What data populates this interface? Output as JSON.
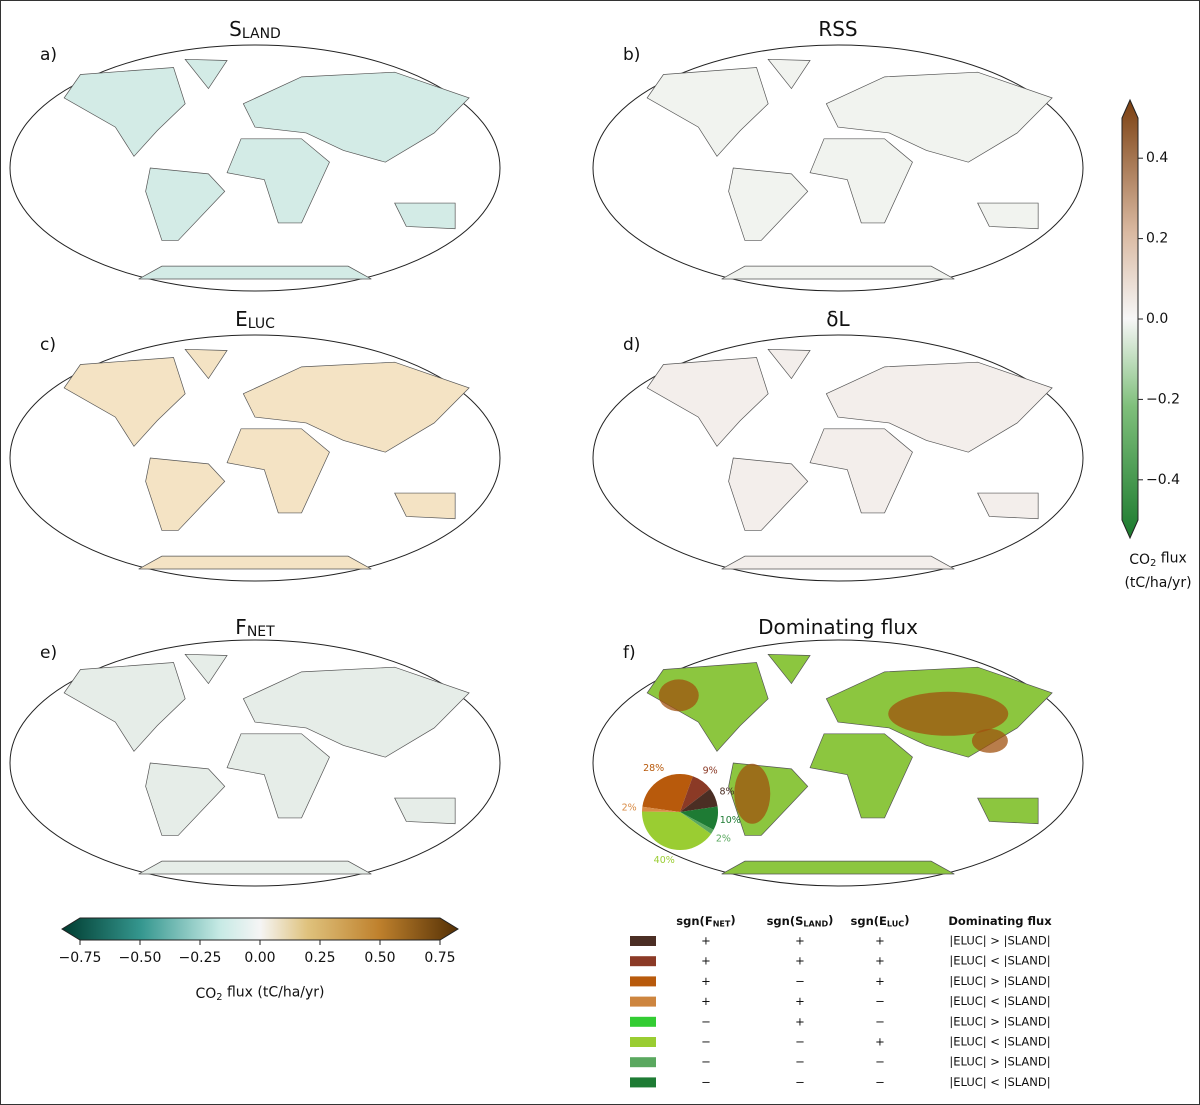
{
  "panels": [
    {
      "label": "a)",
      "title": {
        "main": "S",
        "sub": "LAND"
      }
    },
    {
      "label": "b)",
      "title": {
        "main": "RSS"
      }
    },
    {
      "label": "c)",
      "title": {
        "main": "E",
        "sub": "LUC"
      }
    },
    {
      "label": "d)",
      "title": {
        "main": "δL"
      }
    },
    {
      "label": "e)",
      "title": {
        "main": "F",
        "sub": "NET"
      }
    },
    {
      "label": "f)",
      "title": {
        "main": "Dominating flux"
      }
    }
  ],
  "chart_data": [
    {
      "type": "colorbar",
      "orientation": "horizontal",
      "xlim": [
        -0.75,
        0.75
      ],
      "xticks": [
        {
          "value": -0.75,
          "label": "−0.75"
        },
        {
          "value": -0.5,
          "label": "−0.50"
        },
        {
          "value": -0.25,
          "label": "−0.25"
        },
        {
          "value": 0,
          "label": "0.00"
        },
        0.25,
        {
          "value": 0.5,
          "label": "0.50"
        },
        0.75
      ],
      "label": {
        "main": "CO",
        "sub": "2",
        "rest": " flux (tC/ha/yr)"
      }
    },
    {
      "type": "colorbar",
      "orientation": "vertical",
      "ylim": [
        -0.5,
        0.5
      ],
      "yticks": [
        {
          "value": -0.4,
          "label": "−0.4"
        },
        {
          "value": -0.2,
          "label": "−0.2"
        },
        {
          "value": 0,
          "label": "0.0"
        },
        0.2,
        0.4
      ],
      "label": {
        "main": "CO",
        "sub": "2",
        "rest": " flux",
        "line2": "(tC/ha/yr)"
      }
    },
    {
      "type": "pie",
      "values": [
        28,
        9,
        8,
        10,
        2,
        40,
        2
      ],
      "value_labels": [
        "28%",
        "9%",
        "8%",
        "10%",
        "2%",
        "40%",
        "2%"
      ],
      "colors": [
        "#b85a0c",
        "#8b3a26",
        "#4b2e24",
        "#1e7b34",
        "#5aa85f",
        "#9acd32",
        "#d98b45"
      ]
    }
  ],
  "legend_table": {
    "headers": [
      {
        "main": "sgn(F",
        "sub": "NET",
        "end": ")"
      },
      {
        "main": "sgn(S",
        "sub": "LAND",
        "end": ")"
      },
      {
        "main": "sgn(E",
        "sub": "LUC",
        "end": ")"
      },
      {
        "main": "Dominating flux"
      }
    ],
    "rows": [
      {
        "color": "#4b2e24",
        "cells": [
          "+",
          "+",
          "+",
          "|ELUC| > |SLAND|"
        ]
      },
      {
        "color": "#8b3a26",
        "cells": [
          "+",
          "+",
          "+",
          "|ELUC| < |SLAND|"
        ]
      },
      {
        "color": "#b85a0c",
        "cells": [
          "+",
          "−",
          "+",
          "|ELUC| > |SLAND|"
        ]
      },
      {
        "color": "#cd853f",
        "cells": [
          "+",
          "+",
          "−",
          "|ELUC| < |SLAND|"
        ]
      },
      {
        "color": "#33cc33",
        "cells": [
          "−",
          "+",
          "−",
          "|ELUC| > |SLAND|"
        ]
      },
      {
        "color": "#9acd32",
        "cells": [
          "−",
          "−",
          "+",
          "|ELUC| < |SLAND|"
        ]
      },
      {
        "color": "#5aa85f",
        "cells": [
          "−",
          "−",
          "−",
          "|ELUC| > |SLAND|"
        ]
      },
      {
        "color": "#1e7b34",
        "cells": [
          "−",
          "−",
          "−",
          "|ELUC| < |SLAND|"
        ]
      }
    ]
  }
}
